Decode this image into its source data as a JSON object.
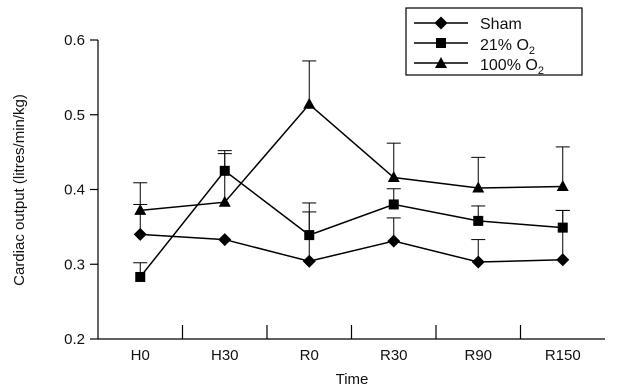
{
  "chart_data": {
    "type": "line",
    "xlabel": "Time",
    "ylabel": "Cardiac output (litres/min/kg)",
    "categories": [
      "H0",
      "H30",
      "R0",
      "R30",
      "R90",
      "R150"
    ],
    "ylim": [
      0.2,
      0.6
    ],
    "yticks": [
      "0.2",
      "0.3",
      "0.4",
      "0.5",
      "0.6"
    ],
    "grid": false,
    "legend_position": "top-right",
    "series": [
      {
        "name": "Sham",
        "marker": "diamond",
        "values": [
          0.34,
          0.333,
          0.304,
          0.331,
          0.303,
          0.306
        ],
        "error_upper": [
          0.38,
          null,
          0.37,
          0.362,
          0.333,
          0.372
        ]
      },
      {
        "name_main": "21% O",
        "name_sub": "2",
        "marker": "square",
        "values": [
          0.283,
          0.425,
          0.339,
          0.38,
          0.358,
          0.349
        ],
        "error_upper": [
          0.302,
          0.448,
          0.382,
          0.401,
          0.378,
          0.372
        ]
      },
      {
        "name_main": "100% O",
        "name_sub": "2",
        "marker": "triangle",
        "values": [
          0.372,
          0.383,
          0.514,
          0.416,
          0.402,
          0.404
        ],
        "error_upper": [
          0.409,
          0.452,
          0.572,
          0.462,
          0.443,
          0.457
        ]
      }
    ]
  }
}
